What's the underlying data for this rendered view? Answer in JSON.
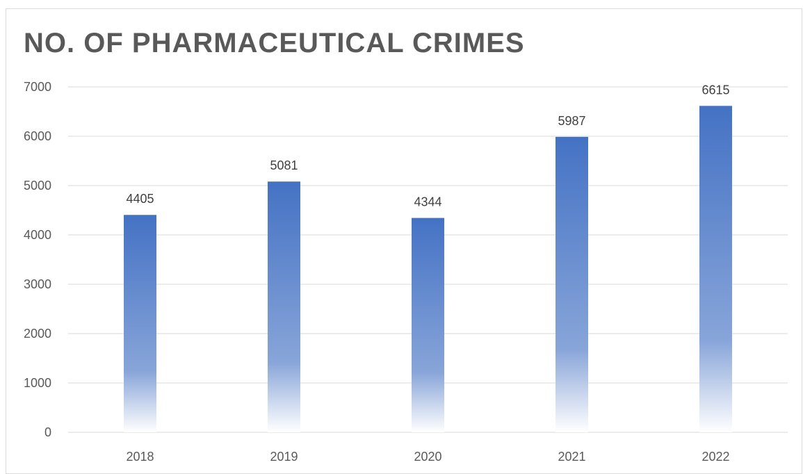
{
  "chart_data": {
    "type": "bar",
    "title": "NO. OF PHARMACEUTICAL CRIMES",
    "xlabel": "",
    "ylabel": "",
    "categories": [
      "2018",
      "2019",
      "2020",
      "2021",
      "2022"
    ],
    "values": [
      4405,
      5081,
      4344,
      5987,
      6615
    ],
    "ylim": [
      0,
      7000
    ],
    "yticks": [
      0,
      1000,
      2000,
      3000,
      4000,
      5000,
      6000,
      7000
    ],
    "grid": true,
    "legend": "none",
    "bar_color": "#4472c4",
    "gradient": "solid at top fading to white at base"
  }
}
